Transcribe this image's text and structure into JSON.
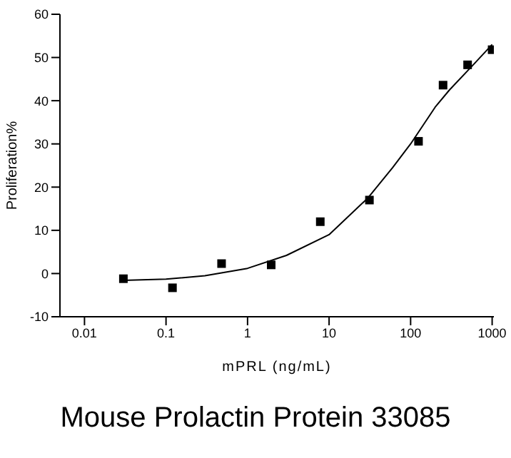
{
  "chart_data": {
    "type": "scatter",
    "title": "Mouse Prolactin Protein 33085",
    "xlabel": "mPRL (ng/mL)",
    "ylabel": "Proliferation%",
    "log": "x",
    "marker": "square",
    "xlim": [
      0.005,
      1050
    ],
    "xticks": [
      0.01,
      0.1,
      1,
      10,
      100,
      1000
    ],
    "ylim": [
      -10,
      60
    ],
    "yticks": [
      -10,
      0,
      10,
      20,
      30,
      40,
      50,
      60
    ],
    "series": [
      {
        "color": "#000000",
        "x": [
          0.03,
          0.12,
          0.48,
          1.95,
          7.8,
          31.25,
          125,
          250,
          500,
          1000
        ],
        "values": [
          -1.2,
          -3.3,
          2.3,
          2.0,
          12,
          17,
          30.6,
          43.6,
          48.3,
          51.8
        ]
      },
      {
        "type": "line",
        "color": "#000000",
        "marker": "none",
        "x": [
          0.03,
          0.1,
          0.3,
          1,
          3,
          10,
          30,
          60,
          100,
          200,
          300,
          600,
          1000
        ],
        "values": [
          -1.6,
          -1.3,
          -0.5,
          1.2,
          4.2,
          9,
          17.5,
          24.5,
          30,
          38.5,
          42.5,
          48.5,
          53
        ]
      }
    ]
  }
}
